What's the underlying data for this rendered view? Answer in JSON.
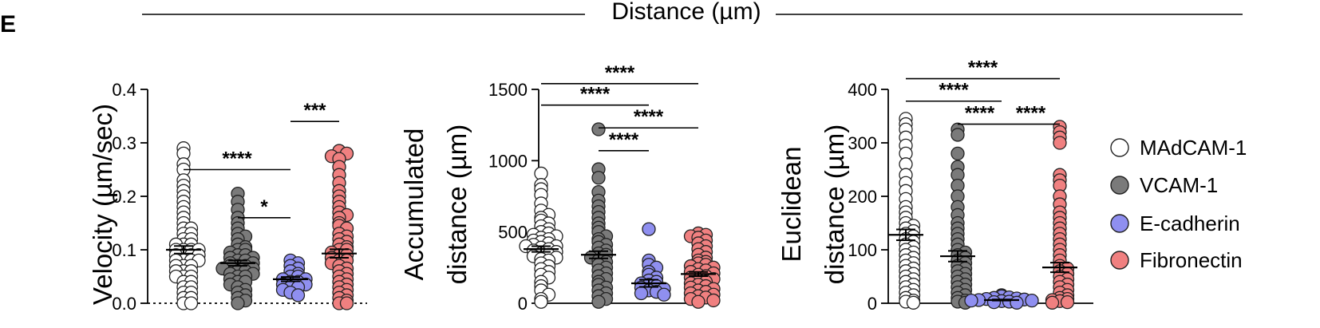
{
  "figure": {
    "panel_letter": "E",
    "header": "Distance (µm)"
  },
  "legend": [
    {
      "label": "MAdCAM-1",
      "color": "#ffffff"
    },
    {
      "label": "VCAM-1",
      "color": "#7a7a7a"
    },
    {
      "label": "E-cadherin",
      "color": "#8f8ff0"
    },
    {
      "label": "Fibronectin",
      "color": "#f08080"
    }
  ],
  "chart_data": [
    {
      "type": "scatter",
      "ylabel": [
        "Velocity (µm/sec)"
      ],
      "ylim": [
        0,
        0.4
      ],
      "yticks": [
        0.0,
        0.1,
        0.2,
        0.3,
        0.4
      ],
      "ytick_labels": [
        "0.0",
        "0.1",
        "0.2",
        "0.3",
        "0.4"
      ],
      "tick_decimals": 1,
      "categories": [
        "MAdCAM-1",
        "VCAM-1",
        "E-cadherin",
        "Fibronectin"
      ],
      "series": [
        {
          "name": "MAdCAM-1",
          "mean": 0.1,
          "sem": 0.007,
          "values": [
            0.29,
            0.28,
            0.26,
            0.25,
            0.23,
            0.22,
            0.21,
            0.2,
            0.19,
            0.18,
            0.17,
            0.16,
            0.15,
            0.14,
            0.14,
            0.13,
            0.13,
            0.12,
            0.12,
            0.11,
            0.11,
            0.11,
            0.1,
            0.1,
            0.1,
            0.1,
            0.09,
            0.09,
            0.09,
            0.09,
            0.08,
            0.08,
            0.08,
            0.08,
            0.07,
            0.07,
            0.07,
            0.06,
            0.06,
            0.06,
            0.05,
            0.05,
            0.05,
            0.04,
            0.04,
            0.03,
            0.03,
            0.02,
            0.02,
            0.01,
            0.01,
            0.0,
            0.0
          ]
        },
        {
          "name": "VCAM-1",
          "mean": 0.075,
          "sem": 0.005,
          "values": [
            0.205,
            0.19,
            0.175,
            0.16,
            0.15,
            0.14,
            0.13,
            0.125,
            0.12,
            0.11,
            0.105,
            0.1,
            0.1,
            0.095,
            0.09,
            0.09,
            0.085,
            0.085,
            0.08,
            0.08,
            0.075,
            0.075,
            0.07,
            0.07,
            0.07,
            0.065,
            0.065,
            0.06,
            0.06,
            0.055,
            0.055,
            0.05,
            0.05,
            0.045,
            0.04,
            0.04,
            0.035,
            0.03,
            0.025,
            0.02,
            0.015,
            0.01,
            0.005,
            0.0
          ]
        },
        {
          "name": "E-cadherin",
          "mean": 0.045,
          "sem": 0.004,
          "values": [
            0.08,
            0.075,
            0.07,
            0.065,
            0.06,
            0.055,
            0.05,
            0.05,
            0.045,
            0.045,
            0.04,
            0.04,
            0.035,
            0.035,
            0.03,
            0.03,
            0.025,
            0.02,
            0.015
          ]
        },
        {
          "name": "Fibronectin",
          "mean": 0.093,
          "sem": 0.008,
          "values": [
            0.285,
            0.28,
            0.275,
            0.27,
            0.255,
            0.24,
            0.225,
            0.21,
            0.2,
            0.19,
            0.18,
            0.17,
            0.165,
            0.16,
            0.15,
            0.145,
            0.14,
            0.13,
            0.125,
            0.12,
            0.115,
            0.11,
            0.105,
            0.1,
            0.1,
            0.095,
            0.09,
            0.09,
            0.085,
            0.08,
            0.08,
            0.075,
            0.07,
            0.065,
            0.06,
            0.055,
            0.05,
            0.045,
            0.04,
            0.035,
            0.03,
            0.025,
            0.02,
            0.015,
            0.01,
            0.005,
            0.0,
            0.0
          ]
        }
      ],
      "significance": [
        {
          "from": 0,
          "to": 2,
          "y": 0.25,
          "label": "****"
        },
        {
          "from": 1,
          "to": 2,
          "y": 0.16,
          "label": "*"
        },
        {
          "from": 2,
          "to": 3,
          "y": 0.34,
          "label": "***"
        }
      ]
    },
    {
      "type": "scatter",
      "ylabel": [
        "Accumulated",
        "distance (µm)"
      ],
      "ylim": [
        0,
        1500
      ],
      "yticks": [
        0,
        500,
        1000,
        1500
      ],
      "ytick_labels": [
        "0",
        "500",
        "1000",
        "1500"
      ],
      "tick_decimals": 0,
      "categories": [
        "MAdCAM-1",
        "VCAM-1",
        "E-cadherin",
        "Fibronectin"
      ],
      "series": [
        {
          "name": "MAdCAM-1",
          "mean": 380,
          "sem": 20,
          "values": [
            910,
            830,
            800,
            760,
            700,
            650,
            620,
            600,
            580,
            560,
            540,
            520,
            500,
            490,
            480,
            470,
            460,
            450,
            440,
            430,
            420,
            410,
            400,
            400,
            390,
            380,
            370,
            360,
            350,
            340,
            330,
            320,
            310,
            300,
            280,
            260,
            240,
            220,
            200,
            180,
            150,
            120,
            90,
            60,
            30,
            10
          ]
        },
        {
          "name": "VCAM-1",
          "mean": 340,
          "sem": 25,
          "values": [
            1220,
            940,
            880,
            780,
            720,
            680,
            640,
            600,
            560,
            530,
            500,
            470,
            450,
            430,
            410,
            390,
            370,
            350,
            340,
            320,
            300,
            290,
            270,
            250,
            230,
            210,
            190,
            170,
            150,
            130,
            110,
            90,
            70,
            50,
            30,
            10
          ]
        },
        {
          "name": "E-cadherin",
          "mean": 140,
          "sem": 25,
          "values": [
            520,
            300,
            270,
            250,
            220,
            200,
            180,
            160,
            150,
            140,
            130,
            120,
            110,
            100,
            90,
            80,
            70,
            60
          ]
        },
        {
          "name": "Fibronectin",
          "mean": 205,
          "sem": 15,
          "values": [
            490,
            480,
            470,
            460,
            440,
            420,
            400,
            380,
            360,
            340,
            320,
            300,
            290,
            280,
            270,
            260,
            250,
            240,
            230,
            220,
            210,
            200,
            190,
            180,
            170,
            160,
            150,
            140,
            130,
            120,
            110,
            100,
            90,
            80,
            70,
            60,
            50,
            40,
            30,
            20,
            10
          ]
        }
      ],
      "significance": [
        {
          "from": 0,
          "to": 3,
          "y": 1540,
          "label": "****"
        },
        {
          "from": 0,
          "to": 2,
          "y": 1390,
          "label": "****"
        },
        {
          "from": 1,
          "to": 3,
          "y": 1230,
          "label": "****"
        },
        {
          "from": 1,
          "to": 2,
          "y": 1070,
          "label": "****"
        }
      ]
    },
    {
      "type": "scatter",
      "ylabel": [
        "Euclidean",
        "distance (µm)"
      ],
      "ylim": [
        0,
        400
      ],
      "yticks": [
        0,
        100,
        200,
        300,
        400
      ],
      "ytick_labels": [
        "0",
        "100",
        "200",
        "300",
        "400"
      ],
      "tick_decimals": 0,
      "categories": [
        "MAdCAM-1",
        "VCAM-1",
        "E-cadherin",
        "Fibronectin"
      ],
      "series": [
        {
          "name": "MAdCAM-1",
          "mean": 128,
          "sem": 10,
          "values": [
            345,
            335,
            325,
            310,
            295,
            280,
            260,
            240,
            225,
            210,
            195,
            180,
            170,
            160,
            150,
            145,
            140,
            135,
            130,
            125,
            120,
            115,
            110,
            105,
            100,
            95,
            90,
            85,
            80,
            75,
            70,
            65,
            60,
            55,
            50,
            45,
            40,
            35,
            30,
            25,
            20,
            15,
            10,
            5,
            3,
            1
          ]
        },
        {
          "name": "VCAM-1",
          "mean": 88,
          "sem": 10,
          "values": [
            325,
            315,
            280,
            255,
            240,
            220,
            200,
            180,
            165,
            150,
            140,
            130,
            120,
            110,
            100,
            95,
            90,
            85,
            80,
            75,
            70,
            65,
            60,
            55,
            50,
            45,
            40,
            35,
            30,
            25,
            20,
            15,
            10,
            5,
            3,
            1
          ]
        },
        {
          "name": "E-cadherin",
          "mean": 6,
          "sem": 1,
          "values": [
            15,
            13,
            11,
            10,
            9,
            8,
            7,
            6,
            5,
            5,
            4,
            3,
            2,
            1
          ]
        },
        {
          "name": "Fibronectin",
          "mean": 67,
          "sem": 9,
          "values": [
            330,
            320,
            310,
            300,
            240,
            230,
            220,
            200,
            185,
            170,
            160,
            150,
            140,
            130,
            120,
            110,
            100,
            90,
            80,
            70,
            65,
            60,
            55,
            50,
            45,
            40,
            35,
            30,
            25,
            20,
            15,
            10,
            8,
            6,
            4,
            2,
            1
          ]
        }
      ],
      "significance": [
        {
          "from": 0,
          "to": 3,
          "y": 420,
          "label": "****"
        },
        {
          "from": 0,
          "to": 2,
          "y": 378,
          "label": "****"
        },
        {
          "from": 1,
          "to": 2,
          "y": 335,
          "label": "****"
        },
        {
          "from": 2,
          "to": 3,
          "y": 335,
          "label": "****"
        }
      ]
    }
  ]
}
